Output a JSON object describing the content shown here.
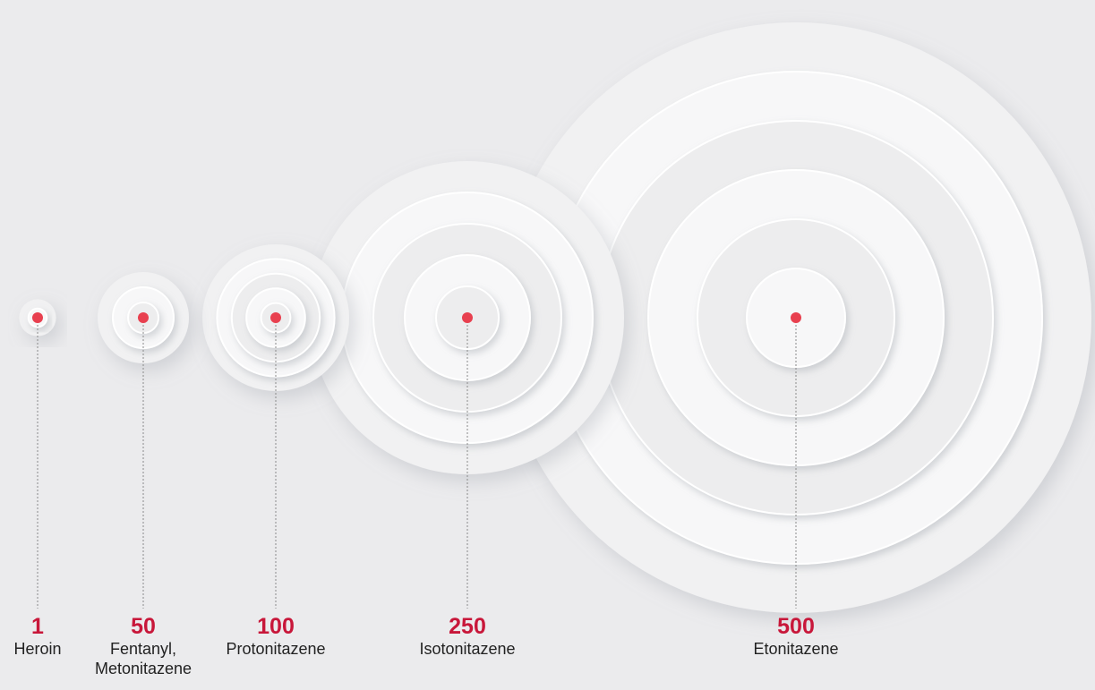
{
  "chart_data": {
    "type": "bubble",
    "categories": [
      "Heroin",
      "Fentanyl, Metonitazene",
      "Protonitazene",
      "Isotonitazene",
      "Etonitazene"
    ],
    "values": [
      1,
      50,
      100,
      250,
      500
    ],
    "color": "#c8173a",
    "dot_color": "#e8404f"
  }
}
